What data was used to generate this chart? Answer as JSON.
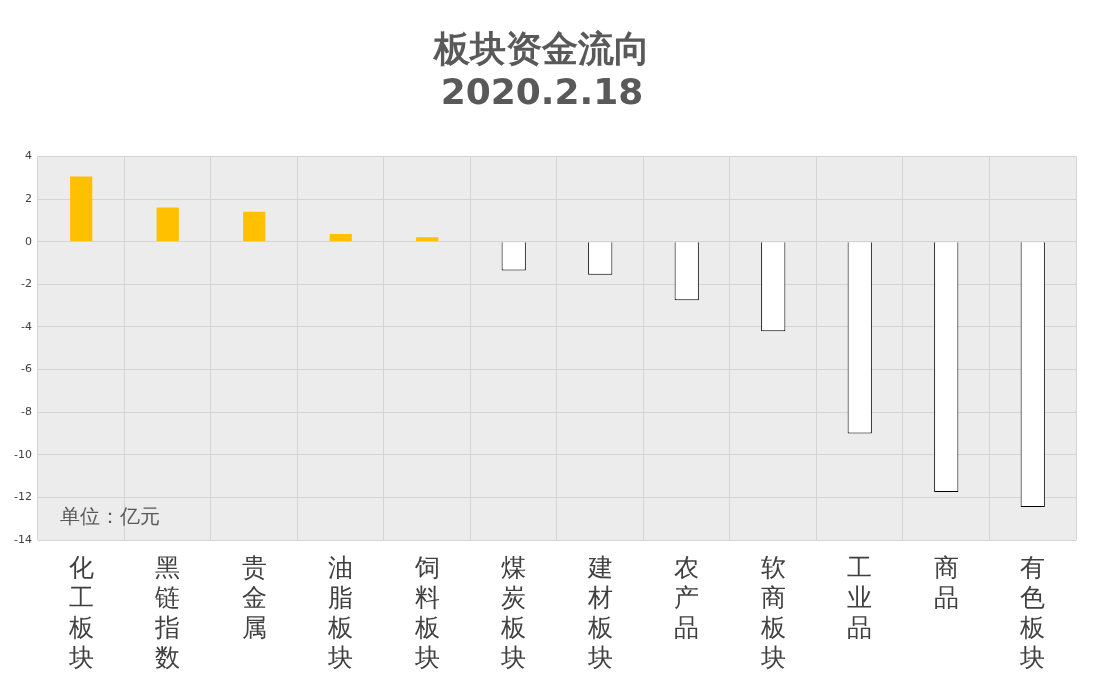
{
  "chart_data": {
    "type": "bar",
    "title": "板块资金流向\n2020.2.18",
    "categories": [
      "化工板块",
      "黑链指数",
      "贵金属",
      "油脂板块",
      "饲料板块",
      "煤炭板块",
      "建材板块",
      "农产品",
      "软商板块",
      "工业品",
      "商品",
      "有色板块"
    ],
    "values": [
      3.1,
      1.65,
      1.45,
      0.4,
      0.25,
      -1.35,
      -1.55,
      -2.75,
      -4.2,
      -9.0,
      -11.75,
      -12.45
    ],
    "colors": [
      "#ffc000",
      "#ffc000",
      "#ffc000",
      "#ffc000",
      "#ffc000",
      "#ffffff",
      "#ffffff",
      "#ffffff",
      "#ffffff",
      "#ffffff",
      "#ffffff",
      "#ffffff"
    ],
    "ylim": [
      -14,
      4
    ],
    "yticks": [
      -14,
      -12,
      -10,
      -8,
      -6,
      -4,
      -2,
      0,
      2,
      4
    ],
    "grid": true,
    "legend": false,
    "annotations": [
      "单位：亿元"
    ]
  }
}
